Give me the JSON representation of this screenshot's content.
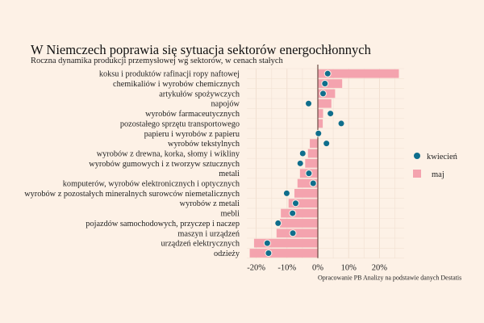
{
  "chart_data": {
    "type": "bar",
    "orientation": "horizontal",
    "title": "W Niemczech poprawia się sytuacja sektorów energochłonnych",
    "subtitle": "Roczna dynamika produkcji przemysłowej wg sektorów, w cenach stałych",
    "source": "Opracowanie PB Analizy na podstawie danych Destatis",
    "categories": [
      "koksu i produktów rafinacji ropy naftowej",
      "chemikaliów i wyrobów chemicznych",
      "artykułów spożywczych",
      "napojów",
      "wyrobów farmaceutycznych",
      "pozostałego sprzętu transportowego",
      "papieru i wyrobów z papieru",
      "wyrobów tekstylnych",
      "wyrobów z drewna, korka, słomy i wikliny",
      "wyrobów gumowych i z tworzyw sztucznych",
      "metali",
      "komputerów, wyrobów elektronicznych i optycznych",
      "wyrobów z pozostałych mineralnych surowców niemetalicznych",
      "wyrobów z metali",
      "mebli",
      "pojazdów samochodowych, przyczep i naczep",
      "maszyn i urządzeń",
      "urządzeń elektrycznych",
      "odzieży"
    ],
    "series": [
      {
        "name": "maj",
        "mark": "bar",
        "color": "#f4a3ae",
        "values": [
          26.3,
          7.9,
          5.6,
          4.4,
          1.7,
          1.6,
          0.1,
          -2.6,
          -3.2,
          -4.1,
          -5.8,
          -6.6,
          -7.6,
          -9.5,
          -12.0,
          -12.3,
          -13.4,
          -20.7,
          -22.1
        ]
      },
      {
        "name": "kwiecień",
        "mark": "dot",
        "color": "#0f6e8c",
        "values": [
          3.2,
          2.3,
          1.7,
          -3.0,
          4.1,
          7.6,
          0.2,
          2.8,
          -4.9,
          -5.7,
          -2.9,
          -1.5,
          -10.1,
          -7.2,
          -8.2,
          -12.9,
          -8.1,
          -16.4,
          -16.0
        ]
      }
    ],
    "xlim": [
      -23,
      28
    ],
    "xticks": [
      -20,
      -10,
      0,
      10,
      20
    ],
    "xtick_labels": [
      "-20%",
      "-10%",
      "0%",
      "10%",
      "20%"
    ],
    "grid": true,
    "legend_position": "right"
  }
}
